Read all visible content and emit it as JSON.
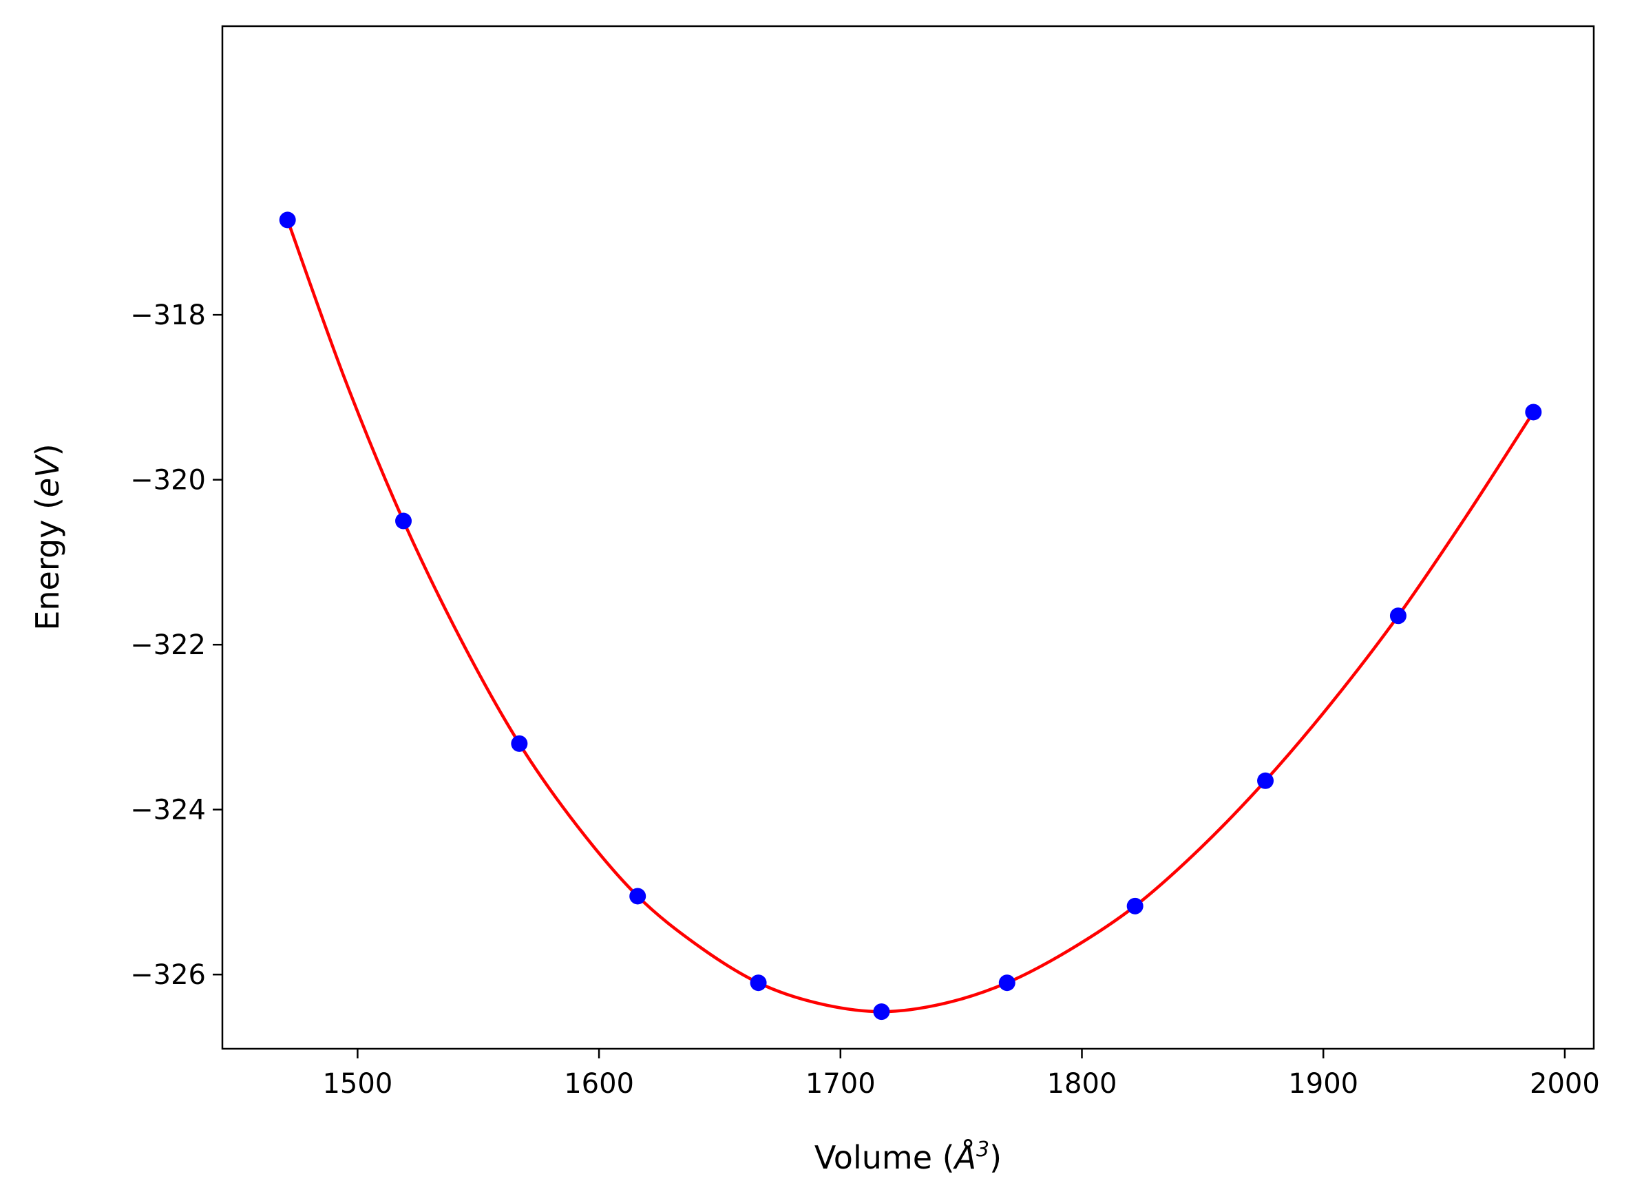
{
  "chart_data": {
    "type": "scatter",
    "title": "",
    "xlabel": "Volume (",
    "xlabel_unit": "Å",
    "xlabel_exp": "3",
    "xlabel_close": ")",
    "ylabel": "Energy (",
    "ylabel_unit": "eV",
    "ylabel_close": ")",
    "xlim": [
      1444,
      2012
    ],
    "ylim": [
      -326.9,
      -314.5
    ],
    "xticks": [
      1500,
      1600,
      1700,
      1800,
      1900,
      2000
    ],
    "xtick_labels": [
      "1500",
      "1600",
      "1700",
      "1800",
      "1900",
      "2000"
    ],
    "yticks": [
      -318,
      -320,
      -322,
      -324,
      -326
    ],
    "ytick_labels": [
      "−318",
      "−320",
      "−322",
      "−324",
      "−326"
    ],
    "grid": false,
    "series": [
      {
        "kind": "points",
        "color": "#0000ff",
        "x": [
          1471,
          1519,
          1567,
          1616,
          1666,
          1717,
          1769,
          1822,
          1876,
          1931,
          1987
        ],
        "y": [
          -316.85,
          -320.5,
          -323.2,
          -325.05,
          -326.1,
          -326.45,
          -326.1,
          -325.17,
          -323.65,
          -321.65,
          -319.18
        ]
      },
      {
        "kind": "fit-curve",
        "color": "#ff0000",
        "x": [
          1471,
          1495,
          1519,
          1543,
          1567,
          1591,
          1616,
          1641,
          1666,
          1691,
          1717,
          1743,
          1769,
          1795,
          1822,
          1849,
          1876,
          1903,
          1931,
          1959,
          1987
        ],
        "y": [
          -316.85,
          -318.8,
          -320.5,
          -321.95,
          -323.2,
          -324.2,
          -325.05,
          -325.65,
          -326.1,
          -326.35,
          -326.45,
          -326.35,
          -326.1,
          -325.7,
          -325.17,
          -324.47,
          -323.65,
          -322.72,
          -321.65,
          -320.45,
          -319.18
        ]
      }
    ]
  }
}
